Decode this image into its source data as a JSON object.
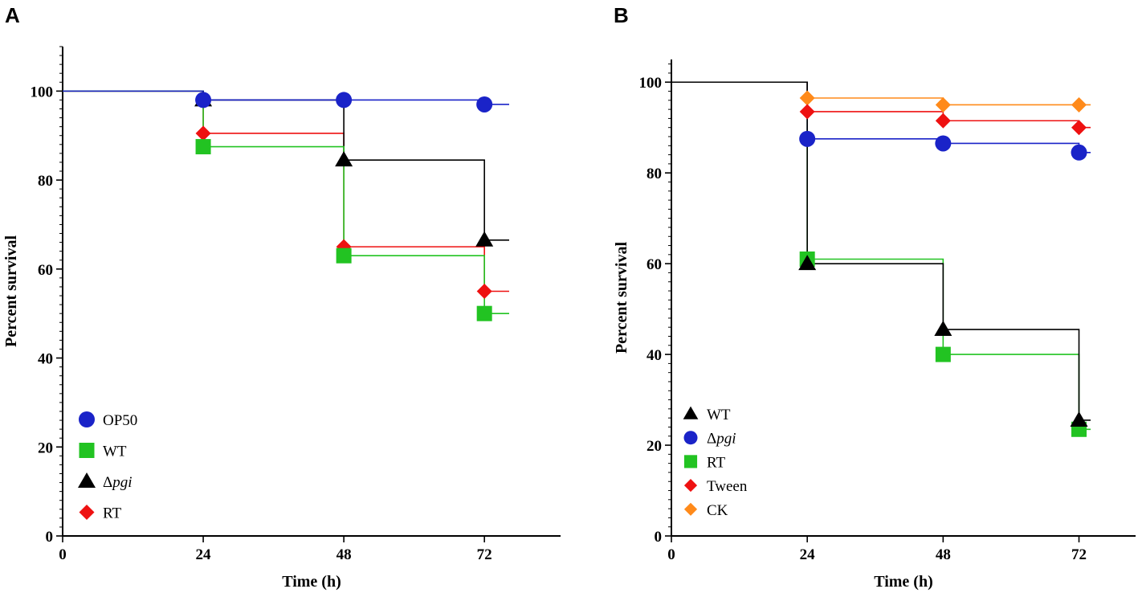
{
  "chart_data": [
    {
      "panel_label": "A",
      "type": "line",
      "subtype": "kaplan-meier survival",
      "xlabel": "Time (h)",
      "ylabel": "Percent survival",
      "xlim": [
        0,
        85
      ],
      "ylim": [
        0,
        110
      ],
      "xticks": [
        0,
        24,
        48,
        72
      ],
      "yticks": [
        0,
        20,
        40,
        60,
        80,
        100
      ],
      "legend_position": "bottom-left",
      "series": [
        {
          "name": "OP50",
          "prefix": "",
          "italic": "",
          "color": "#1a23c8",
          "marker": "circle",
          "x": [
            24,
            48,
            72
          ],
          "y": [
            98,
            98,
            97
          ]
        },
        {
          "name": "WT",
          "prefix": "",
          "italic": "",
          "color": "#22c322",
          "marker": "square",
          "x": [
            24,
            48,
            72
          ],
          "y": [
            87.5,
            63,
            50
          ]
        },
        {
          "name": "Δpgi",
          "prefix": "Δ",
          "italic": "pgi",
          "color": "#000000",
          "marker": "triangle",
          "x": [
            24,
            48,
            72
          ],
          "y": [
            98,
            84.5,
            66.5
          ]
        },
        {
          "name": "RT",
          "prefix": "",
          "italic": "",
          "color": "#ee1111",
          "marker": "diamond",
          "x": [
            24,
            48,
            72
          ],
          "y": [
            90.5,
            65,
            55
          ]
        }
      ]
    },
    {
      "panel_label": "B",
      "type": "line",
      "subtype": "kaplan-meier survival",
      "xlabel": "Time (h)",
      "ylabel": "Percent survival",
      "xlim": [
        0,
        82
      ],
      "ylim": [
        0,
        105
      ],
      "xticks": [
        0,
        24,
        48,
        72
      ],
      "yticks": [
        0,
        20,
        40,
        60,
        80,
        100
      ],
      "legend_position": "bottom-left",
      "series": [
        {
          "name": "WT",
          "prefix": "",
          "italic": "",
          "color": "#000000",
          "marker": "triangle",
          "x": [
            24,
            48,
            72
          ],
          "y": [
            60,
            45.5,
            25.5
          ]
        },
        {
          "name": "Δpgi",
          "prefix": "Δ",
          "italic": "pgi",
          "color": "#1a23c8",
          "marker": "circle",
          "x": [
            24,
            48,
            72
          ],
          "y": [
            87.5,
            86.5,
            84.5
          ]
        },
        {
          "name": "RT",
          "prefix": "",
          "italic": "",
          "color": "#22c322",
          "marker": "square",
          "x": [
            24,
            48,
            72
          ],
          "y": [
            61,
            40,
            23.5
          ]
        },
        {
          "name": "Tween",
          "prefix": "",
          "italic": "",
          "color": "#ee1111",
          "marker": "diamond",
          "x": [
            24,
            48,
            72
          ],
          "y": [
            93.5,
            91.5,
            90
          ]
        },
        {
          "name": "CK",
          "prefix": "",
          "italic": "",
          "color": "#ff8a1a",
          "marker": "diamond",
          "x": [
            24,
            48,
            72
          ],
          "y": [
            96.5,
            95,
            95
          ]
        }
      ]
    }
  ]
}
